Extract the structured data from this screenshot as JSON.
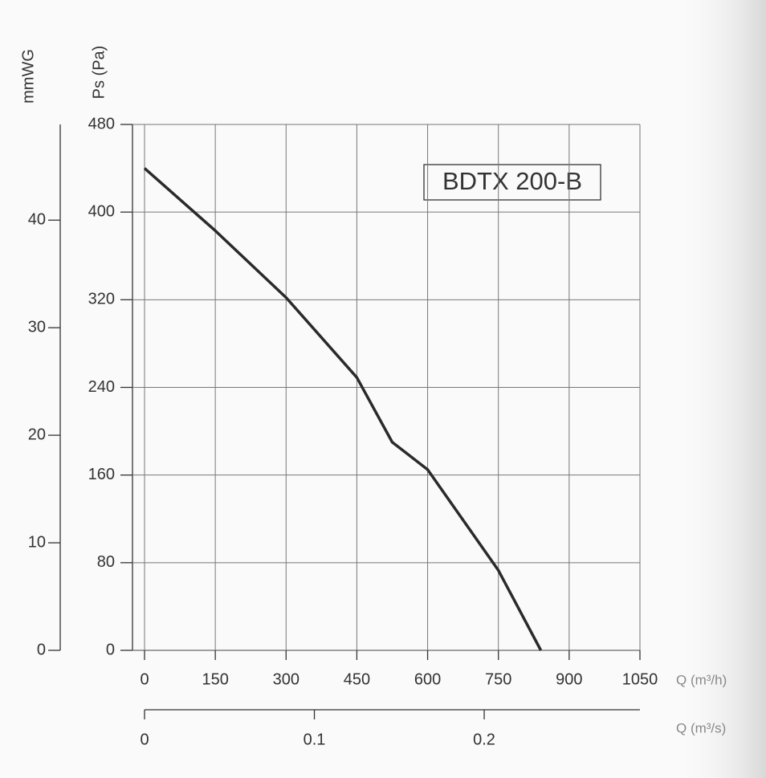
{
  "chart_data": {
    "type": "line",
    "annotation": "BDTX 200-B",
    "y_label": "Ps (Pa)",
    "y2_label": "mmWG",
    "x_label": "Q (m³/h)",
    "x2_label": "Q (m³/s)",
    "x": [
      0,
      150,
      300,
      450,
      525,
      600,
      750,
      840
    ],
    "series": [
      {
        "color": "#2a2a2a",
        "values": [
          440,
          383,
          322,
          249,
          190,
          165,
          73,
          0
        ]
      }
    ],
    "xlim": [
      0,
      1050
    ],
    "xticks": [
      0,
      150,
      300,
      450,
      600,
      750,
      900,
      1050
    ],
    "ylim": [
      0,
      480
    ],
    "yticks": [
      0,
      80,
      160,
      240,
      320,
      400,
      480
    ],
    "y2lim": [
      0,
      48.9
    ],
    "y2ticks": [
      0,
      10,
      20,
      30,
      40
    ],
    "x2lim": [
      0,
      0.2917
    ],
    "x2ticks": [
      0,
      0.1,
      0.2
    ],
    "grid": true
  }
}
